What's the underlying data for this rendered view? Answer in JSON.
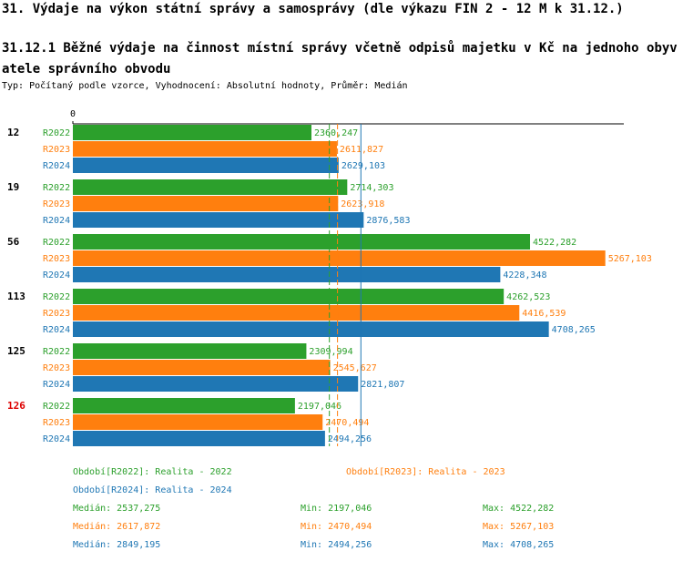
{
  "header": {
    "section": "31. Výdaje na výkon státní správy a samosprávy (dle výkazu FIN 2 - 12 M k 31.12.)",
    "subsection": "31.12.1 Běžné výdaje na činnost místní správy včetně odpisů majetku v Kč na jednoho obyvatele správního obvodu",
    "typ": "Typ: Počítaný podle vzorce, Vyhodnocení: Absolutní hodnoty, Průměr: Medián"
  },
  "chart_data": {
    "type": "bar",
    "orientation": "horizontal",
    "axis_zero_label": "0",
    "xlim": [
      0,
      5450
    ],
    "categories": [
      "12",
      "19",
      "56",
      "113",
      "125",
      "126"
    ],
    "highlight_category": "126",
    "series": [
      {
        "name": "R2022",
        "color": "#2ca02c",
        "value_labels": [
          "2360,247",
          "2714,303",
          "4522,282",
          "4262,523",
          "2309,994",
          "2197,046"
        ],
        "values": [
          2360.247,
          2714.303,
          4522.282,
          4262.523,
          2309.994,
          2197.046
        ]
      },
      {
        "name": "R2023",
        "color": "#ff7f0e",
        "value_labels": [
          "2611,827",
          "2623,918",
          "5267,103",
          "4416,539",
          "2545,627",
          "2470,494"
        ],
        "values": [
          2611.827,
          2623.918,
          5267.103,
          4416.539,
          2545.627,
          2470.494
        ]
      },
      {
        "name": "R2024",
        "color": "#1f77b4",
        "value_labels": [
          "2629,103",
          "2876,583",
          "4228,348",
          "4708,265",
          "2821,807",
          "2494,256"
        ],
        "values": [
          2629.103,
          2876.583,
          4228.348,
          4708.265,
          2821.807,
          2494.256
        ]
      }
    ],
    "medians": [
      2537.275,
      2617.872,
      2849.195
    ]
  },
  "legend": {
    "period_2022": "Období[R2022]: Realita - 2022",
    "period_2023": "Období[R2023]: Realita - 2023",
    "period_2024": "Období[R2024]: Realita - 2024",
    "stats": [
      {
        "median": "Medián: 2537,275",
        "min": "Min: 2197,046",
        "max": "Max: 4522,282"
      },
      {
        "median": "Medián: 2617,872",
        "min": "Min: 2470,494",
        "max": "Max: 5267,103"
      },
      {
        "median": "Medián: 2849,195",
        "min": "Min: 2494,256",
        "max": "Max: 4708,265"
      }
    ]
  }
}
